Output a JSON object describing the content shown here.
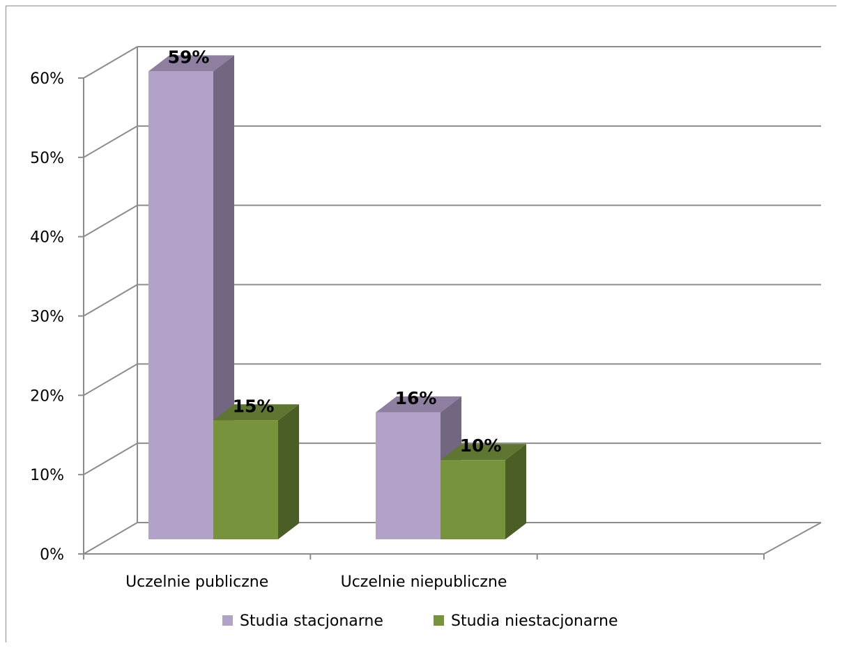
{
  "chart_data": {
    "type": "bar",
    "title": "",
    "xlabel": "",
    "ylabel": "",
    "categories": [
      "Uczelnie publiczne",
      "Uczelnie niepubliczne"
    ],
    "series": [
      {
        "name": "Studia stacjonarne",
        "values": [
          59,
          16
        ],
        "labels": [
          "59%",
          "16%"
        ],
        "color": "#b3a2c7",
        "side_color": "#726681",
        "top_color": "#8e7fa1"
      },
      {
        "name": "Studia niestacjonarne",
        "values": [
          15,
          10
        ],
        "labels": [
          "15%",
          "10%"
        ],
        "color": "#77933c",
        "side_color": "#4b5e26",
        "top_color": "#5f7630"
      }
    ],
    "ylim": [
      0,
      60
    ],
    "yticks": [
      0,
      10,
      20,
      30,
      40,
      50,
      60
    ],
    "ytick_labels": [
      "0%",
      "10%",
      "20%",
      "30%",
      "40%",
      "50%",
      "60%"
    ],
    "grid": true,
    "legend_position": "bottom",
    "style": "3d-clustered-column"
  }
}
